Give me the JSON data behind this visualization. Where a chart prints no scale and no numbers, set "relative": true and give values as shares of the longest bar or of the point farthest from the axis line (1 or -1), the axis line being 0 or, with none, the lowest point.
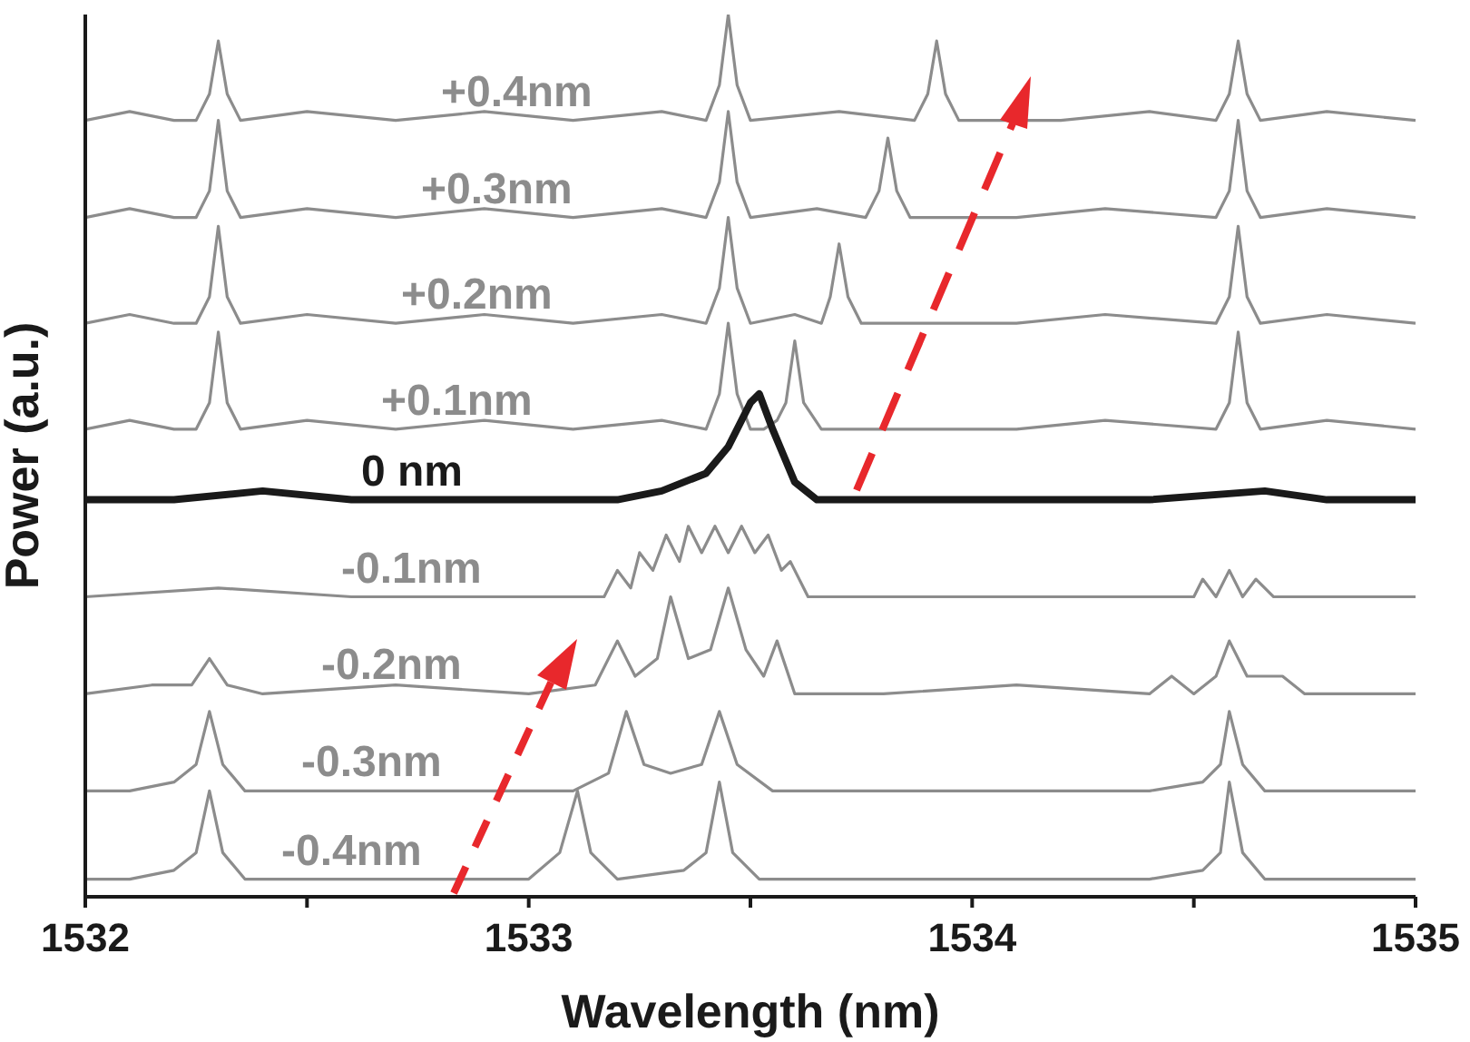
{
  "chart_data": {
    "type": "line",
    "relative": true,
    "xlabel": "Wavelength (nm)",
    "ylabel": "Power (a.u.)",
    "xlim": [
      1532,
      1535
    ],
    "xticks": [
      1532,
      {
        "value": 1532.5,
        "label": null
      },
      1533,
      {
        "value": 1533.5,
        "label": null
      },
      1534,
      {
        "value": 1534.5,
        "label": null
      },
      1535
    ],
    "grid": false,
    "legend": false,
    "marker": "none",
    "series": [
      {
        "name": "+0.4nm",
        "color": "#8c8c8c",
        "x": [
          1532,
          1532.1,
          1532.2,
          1532.25,
          1532.28,
          1532.3,
          1532.32,
          1532.35,
          1532.5,
          1532.7,
          1532.9,
          1533.1,
          1533.3,
          1533.4,
          1533.43,
          1533.45,
          1533.47,
          1533.5,
          1533.7,
          1533.87,
          1533.9,
          1533.92,
          1533.94,
          1533.97,
          1534.2,
          1534.4,
          1534.55,
          1534.58,
          1534.6,
          1534.62,
          1534.65,
          1534.8,
          1535
        ],
        "values": [
          0.88,
          0.89,
          0.88,
          0.88,
          0.91,
          0.97,
          0.91,
          0.88,
          0.89,
          0.88,
          0.89,
          0.88,
          0.89,
          0.88,
          0.92,
          1.0,
          0.92,
          0.88,
          0.89,
          0.88,
          0.91,
          0.97,
          0.91,
          0.88,
          0.88,
          0.89,
          0.88,
          0.91,
          0.97,
          0.91,
          0.88,
          0.89,
          0.88
        ]
      },
      {
        "name": "+0.3nm",
        "color": "#8c8c8c",
        "x": [
          1532,
          1532.1,
          1532.2,
          1532.25,
          1532.28,
          1532.3,
          1532.32,
          1532.35,
          1532.5,
          1532.7,
          1532.9,
          1533.1,
          1533.3,
          1533.4,
          1533.43,
          1533.45,
          1533.47,
          1533.5,
          1533.65,
          1533.76,
          1533.79,
          1533.81,
          1533.83,
          1533.86,
          1534.1,
          1534.3,
          1534.55,
          1534.58,
          1534.6,
          1534.62,
          1534.65,
          1534.8,
          1535
        ],
        "values": [
          0.77,
          0.78,
          0.77,
          0.77,
          0.8,
          0.88,
          0.8,
          0.77,
          0.78,
          0.77,
          0.78,
          0.77,
          0.78,
          0.77,
          0.81,
          0.89,
          0.81,
          0.77,
          0.78,
          0.77,
          0.8,
          0.86,
          0.8,
          0.77,
          0.77,
          0.78,
          0.77,
          0.8,
          0.88,
          0.8,
          0.77,
          0.78,
          0.77
        ]
      },
      {
        "name": "+0.2nm",
        "color": "#8c8c8c",
        "x": [
          1532,
          1532.1,
          1532.2,
          1532.25,
          1532.28,
          1532.3,
          1532.32,
          1532.35,
          1532.5,
          1532.7,
          1532.9,
          1533.1,
          1533.3,
          1533.4,
          1533.43,
          1533.45,
          1533.47,
          1533.5,
          1533.6,
          1533.66,
          1533.68,
          1533.7,
          1533.72,
          1533.75,
          1534.1,
          1534.3,
          1534.55,
          1534.58,
          1534.6,
          1534.62,
          1534.65,
          1534.8,
          1535
        ],
        "values": [
          0.65,
          0.66,
          0.65,
          0.65,
          0.68,
          0.76,
          0.68,
          0.65,
          0.66,
          0.65,
          0.66,
          0.65,
          0.66,
          0.65,
          0.69,
          0.77,
          0.69,
          0.65,
          0.66,
          0.65,
          0.68,
          0.74,
          0.68,
          0.65,
          0.65,
          0.66,
          0.65,
          0.68,
          0.76,
          0.68,
          0.65,
          0.66,
          0.65
        ]
      },
      {
        "name": "+0.1nm",
        "color": "#8c8c8c",
        "x": [
          1532,
          1532.1,
          1532.2,
          1532.25,
          1532.28,
          1532.3,
          1532.32,
          1532.35,
          1532.5,
          1532.7,
          1532.9,
          1533.1,
          1533.3,
          1533.4,
          1533.43,
          1533.45,
          1533.47,
          1533.5,
          1533.53,
          1533.56,
          1533.58,
          1533.6,
          1533.62,
          1533.66,
          1534.1,
          1534.3,
          1534.55,
          1534.58,
          1534.6,
          1534.62,
          1534.65,
          1534.8,
          1535
        ],
        "values": [
          0.53,
          0.54,
          0.53,
          0.53,
          0.56,
          0.64,
          0.56,
          0.53,
          0.54,
          0.53,
          0.54,
          0.53,
          0.54,
          0.53,
          0.57,
          0.65,
          0.57,
          0.53,
          0.53,
          0.54,
          0.56,
          0.63,
          0.56,
          0.53,
          0.53,
          0.54,
          0.53,
          0.56,
          0.64,
          0.56,
          0.53,
          0.54,
          0.53
        ]
      },
      {
        "name": "0 nm",
        "color": "#1a1a1a",
        "x": [
          1532,
          1532.2,
          1532.4,
          1532.6,
          1532.8,
          1533,
          1533.2,
          1533.3,
          1533.4,
          1533.45,
          1533.5,
          1533.52,
          1533.55,
          1533.6,
          1533.65,
          1533.8,
          1534,
          1534.2,
          1534.4,
          1534.66,
          1534.8,
          1535
        ],
        "values": [
          0.45,
          0.45,
          0.46,
          0.45,
          0.45,
          0.45,
          0.45,
          0.46,
          0.48,
          0.51,
          0.56,
          0.57,
          0.53,
          0.47,
          0.45,
          0.45,
          0.45,
          0.45,
          0.45,
          0.46,
          0.45,
          0.45
        ]
      },
      {
        "name": "-0.1nm",
        "color": "#8c8c8c",
        "x": [
          1532,
          1532.3,
          1532.6,
          1532.9,
          1533.1,
          1533.17,
          1533.2,
          1533.23,
          1533.25,
          1533.28,
          1533.31,
          1533.34,
          1533.36,
          1533.39,
          1533.42,
          1533.45,
          1533.48,
          1533.51,
          1533.54,
          1533.57,
          1533.59,
          1533.63,
          1533.8,
          1534.1,
          1534.4,
          1534.5,
          1534.52,
          1534.55,
          1534.58,
          1534.61,
          1534.64,
          1534.68,
          1534.9,
          1535
        ],
        "values": [
          0.34,
          0.35,
          0.34,
          0.34,
          0.34,
          0.34,
          0.37,
          0.35,
          0.39,
          0.37,
          0.41,
          0.38,
          0.42,
          0.39,
          0.42,
          0.39,
          0.42,
          0.39,
          0.41,
          0.37,
          0.38,
          0.34,
          0.34,
          0.34,
          0.34,
          0.34,
          0.36,
          0.34,
          0.37,
          0.34,
          0.36,
          0.34,
          0.34,
          0.34
        ]
      },
      {
        "name": "-0.2nm",
        "color": "#8c8c8c",
        "x": [
          1532,
          1532.15,
          1532.24,
          1532.28,
          1532.32,
          1532.4,
          1532.7,
          1533,
          1533.15,
          1533.2,
          1533.24,
          1533.29,
          1533.32,
          1533.36,
          1533.41,
          1533.45,
          1533.49,
          1533.53,
          1533.56,
          1533.6,
          1533.8,
          1534.1,
          1534.4,
          1534.45,
          1534.5,
          1534.55,
          1534.58,
          1534.62,
          1534.7,
          1534.75,
          1535
        ],
        "values": [
          0.23,
          0.24,
          0.24,
          0.27,
          0.24,
          0.23,
          0.24,
          0.23,
          0.24,
          0.29,
          0.25,
          0.27,
          0.34,
          0.27,
          0.28,
          0.35,
          0.28,
          0.25,
          0.29,
          0.23,
          0.23,
          0.24,
          0.23,
          0.25,
          0.23,
          0.25,
          0.29,
          0.25,
          0.25,
          0.23,
          0.23
        ]
      },
      {
        "name": "-0.3nm",
        "color": "#8c8c8c",
        "x": [
          1532,
          1532.1,
          1532.2,
          1532.25,
          1532.28,
          1532.31,
          1532.36,
          1532.6,
          1532.9,
          1533.1,
          1533.18,
          1533.22,
          1533.26,
          1533.32,
          1533.39,
          1533.43,
          1533.47,
          1533.55,
          1533.8,
          1534.1,
          1534.4,
          1534.52,
          1534.56,
          1534.58,
          1534.61,
          1534.66,
          1534.85,
          1535
        ],
        "values": [
          0.12,
          0.12,
          0.13,
          0.15,
          0.21,
          0.15,
          0.12,
          0.12,
          0.12,
          0.12,
          0.14,
          0.21,
          0.15,
          0.14,
          0.15,
          0.21,
          0.15,
          0.12,
          0.12,
          0.12,
          0.12,
          0.13,
          0.15,
          0.21,
          0.15,
          0.12,
          0.12,
          0.12
        ]
      },
      {
        "name": "-0.4nm",
        "color": "#8c8c8c",
        "x": [
          1532,
          1532.1,
          1532.2,
          1532.25,
          1532.28,
          1532.31,
          1532.36,
          1532.6,
          1532.9,
          1533,
          1533.07,
          1533.11,
          1533.14,
          1533.2,
          1533.35,
          1533.4,
          1533.43,
          1533.46,
          1533.52,
          1533.8,
          1534.1,
          1534.4,
          1534.52,
          1534.56,
          1534.58,
          1534.61,
          1534.66,
          1534.85,
          1535
        ],
        "values": [
          0.02,
          0.02,
          0.03,
          0.05,
          0.12,
          0.05,
          0.02,
          0.02,
          0.02,
          0.02,
          0.05,
          0.12,
          0.05,
          0.02,
          0.03,
          0.05,
          0.13,
          0.05,
          0.02,
          0.02,
          0.02,
          0.02,
          0.03,
          0.05,
          0.13,
          0.05,
          0.02,
          0.02,
          0.02
        ]
      }
    ]
  }
}
